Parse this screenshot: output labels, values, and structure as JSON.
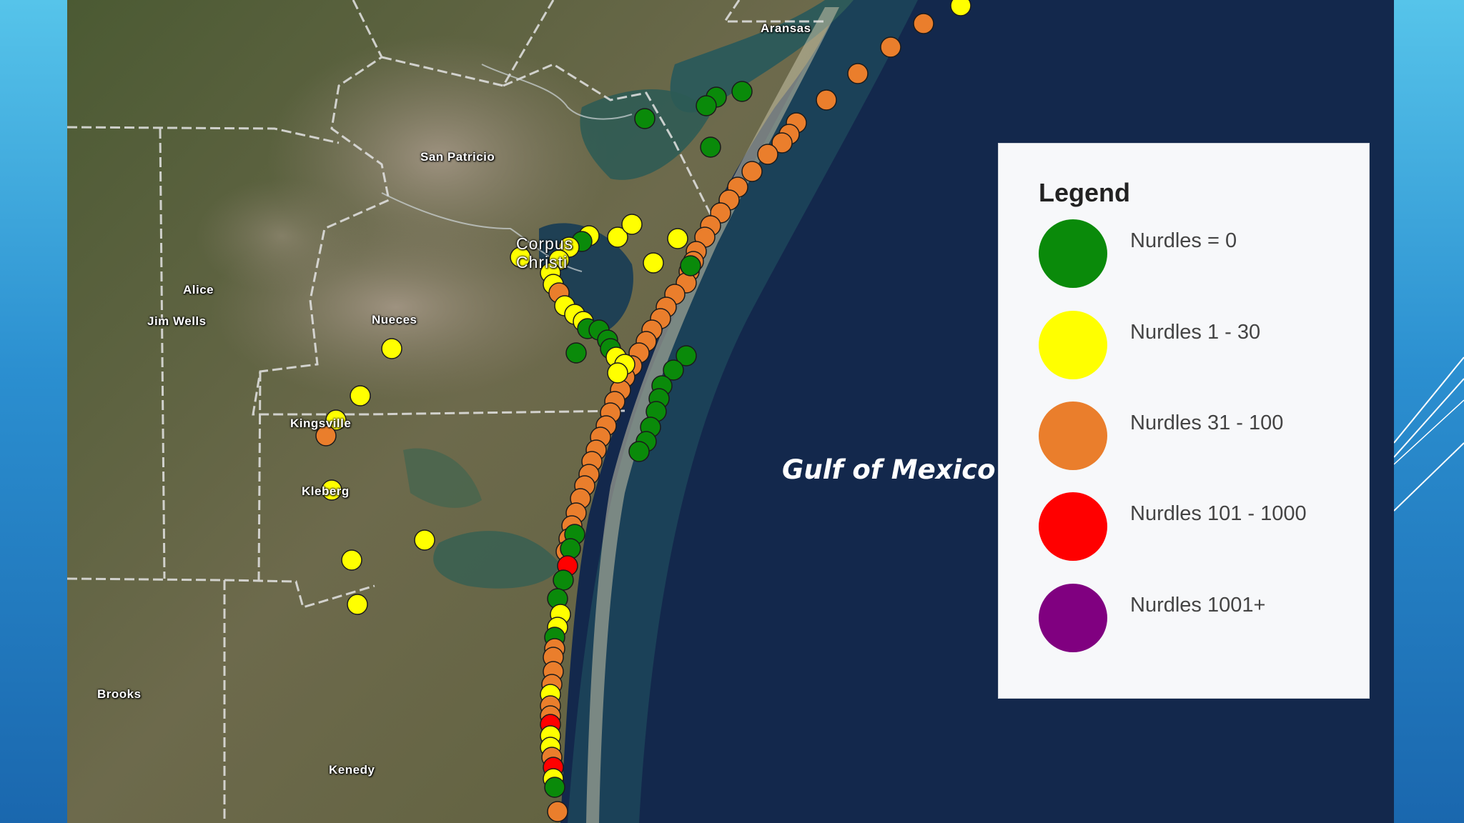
{
  "map": {
    "places": [
      {
        "key": "aransas",
        "label": "Aransas"
      },
      {
        "key": "san-patricio",
        "label": "San Patricio"
      },
      {
        "key": "corpus-christi",
        "label": "Corpus Christi"
      },
      {
        "key": "alice",
        "label": "Alice"
      },
      {
        "key": "jim-wells",
        "label": "Jim Wells"
      },
      {
        "key": "nueces",
        "label": "Nueces"
      },
      {
        "key": "kingsville",
        "label": "Kingsville"
      },
      {
        "key": "kleberg",
        "label": "Kleberg"
      },
      {
        "key": "brooks",
        "label": "Brooks"
      },
      {
        "key": "kenedy",
        "label": "Kenedy"
      }
    ],
    "water_label": "Gulf of Mexico"
  },
  "legend": {
    "title": "Legend",
    "items": [
      {
        "label": "Nurdles = 0",
        "color": "#0a8a0a"
      },
      {
        "label": "Nurdles 1 - 30",
        "color": "#ffff00"
      },
      {
        "label": "Nurdles 31 - 100",
        "color": "#ea7e2c"
      },
      {
        "label": "Nurdles 101 - 1000",
        "color": "#ff0000"
      },
      {
        "label": "Nurdles 1001+",
        "color": "#800080"
      }
    ]
  },
  "colors": {
    "green": "#0a8a0a",
    "yellow": "#ffff00",
    "orange": "#ea7e2c",
    "red": "#ff0000"
  }
}
